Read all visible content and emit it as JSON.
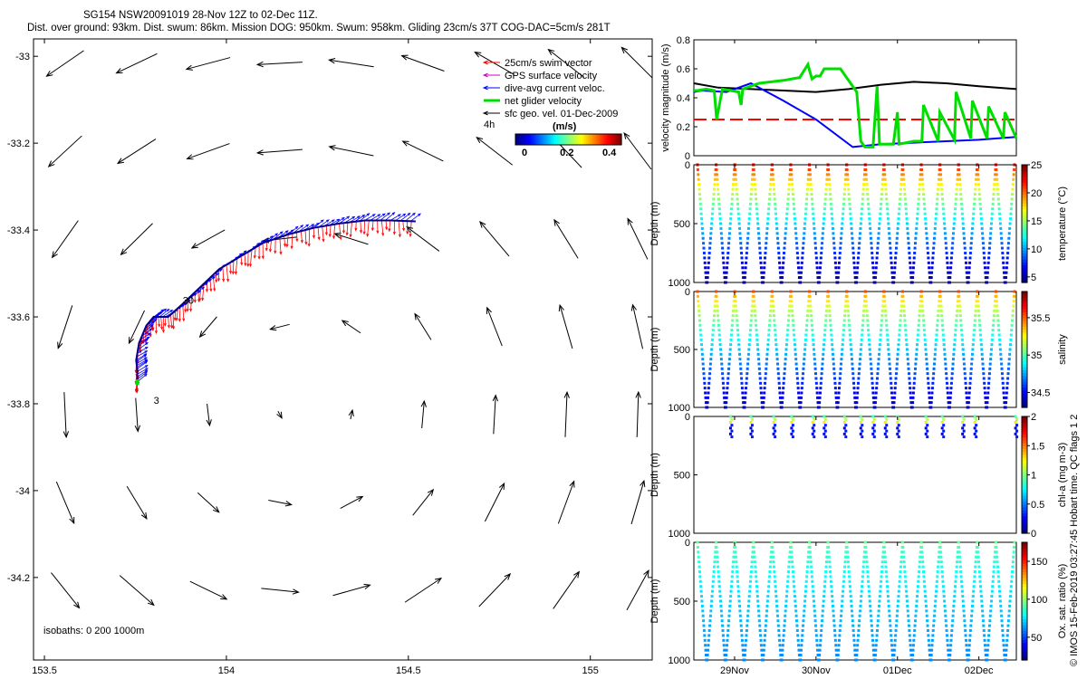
{
  "title": {
    "line1": "SG154 NSW20091019 28-Nov 12Z to 02-Dec 11Z.",
    "line2": "Dist. over ground: 93km. Dist. swum: 86km. Mission DOG: 950km. Swum: 958km. Gliding 23cm/s 37T COG-DAC=5cm/s 281T"
  },
  "map": {
    "xlim": [
      153.47,
      155.17
    ],
    "ylim": [
      -34.39,
      -32.96
    ],
    "xticks": [
      153.5,
      154,
      154.5,
      155
    ],
    "yticks": [
      -33,
      -33.2,
      -33.4,
      -33.6,
      -33.8,
      -34,
      -34.2
    ],
    "legend": [
      {
        "label": "25cm/s swim vector",
        "color": "#ff0000"
      },
      {
        "label": "GPS surface velocity",
        "color": "#cc00cc"
      },
      {
        "label": "dive-avg current veloc.",
        "color": "#0000ff"
      },
      {
        "label": "net glider velocity",
        "color": "#00dd00"
      },
      {
        "label": "sfc geo. vel. 01-Dec-2009",
        "color": "#000000"
      }
    ],
    "colorbar": {
      "label": "(m/s)",
      "ticks": [
        0,
        0.2,
        0.4
      ],
      "range": [
        0,
        0.5
      ]
    },
    "text_4h": "4h",
    "annotations": [
      {
        "text": "30",
        "lon": 153.88,
        "lat": -33.57
      },
      {
        "text": "3",
        "lon": 153.8,
        "lat": -33.8
      }
    ],
    "isobaths_label": "isobaths: 0   200   1000m",
    "eddy_center": {
      "lon": 154.2,
      "lat": -33.8
    }
  },
  "chart_data": [
    {
      "type": "line",
      "title": "",
      "ylabel": "velocity magnitude (m/s)",
      "ylim": [
        0,
        0.8
      ],
      "yticks": [
        0,
        0.2,
        0.4,
        0.6,
        0.8
      ],
      "time_range_days": [
        28.5,
        32.46
      ],
      "series": [
        {
          "name": "surface velocity (black)",
          "color": "#000000",
          "x": [
            28.5,
            28.8,
            29.2,
            29.6,
            30.0,
            30.4,
            30.8,
            31.2,
            31.6,
            32.0,
            32.46
          ],
          "values": [
            0.5,
            0.47,
            0.46,
            0.45,
            0.44,
            0.46,
            0.49,
            0.51,
            0.5,
            0.48,
            0.46
          ]
        },
        {
          "name": "dive-avg current (blue)",
          "color": "#0000ff",
          "x": [
            28.5,
            28.6,
            28.9,
            29.2,
            29.6,
            30.0,
            30.45,
            30.8,
            31.2,
            31.6,
            32.0,
            32.46
          ],
          "values": [
            0.44,
            0.45,
            0.44,
            0.5,
            0.38,
            0.25,
            0.06,
            0.08,
            0.09,
            0.1,
            0.11,
            0.13
          ]
        },
        {
          "name": "25cm/s reference (red)",
          "color": "#ff0000",
          "x": [
            28.5,
            32.46
          ],
          "values": [
            0.25,
            0.25
          ]
        },
        {
          "name": "net glider velocity (green)",
          "color": "#00dd00",
          "x": [
            28.5,
            28.55,
            28.65,
            28.75,
            28.78,
            28.85,
            28.95,
            29.05,
            29.08,
            29.1,
            29.15,
            29.3,
            29.6,
            29.8,
            29.9,
            29.95,
            30.0,
            30.05,
            30.1,
            30.3,
            30.5,
            30.55,
            30.6,
            30.7,
            30.75,
            30.78,
            30.95,
            31.0,
            31.02,
            31.2,
            31.3,
            31.32,
            31.5,
            31.52,
            31.7,
            31.72,
            31.9,
            31.92,
            32.1,
            32.12,
            32.3,
            32.32,
            32.46
          ],
          "values": [
            0.45,
            0.45,
            0.46,
            0.45,
            0.25,
            0.46,
            0.45,
            0.44,
            0.35,
            0.46,
            0.47,
            0.5,
            0.52,
            0.54,
            0.63,
            0.53,
            0.55,
            0.55,
            0.6,
            0.6,
            0.44,
            0.1,
            0.06,
            0.06,
            0.48,
            0.08,
            0.08,
            0.3,
            0.08,
            0.1,
            0.1,
            0.35,
            0.1,
            0.3,
            0.11,
            0.44,
            0.12,
            0.38,
            0.12,
            0.34,
            0.12,
            0.3,
            0.12
          ]
        }
      ]
    },
    {
      "type": "scatter",
      "ylabel": "Depth (m)",
      "ylim": [
        1000,
        0
      ],
      "colorbar_label": "temperature (°C)",
      "colorbar_ticks": [
        5,
        10,
        15,
        20,
        25
      ],
      "colorbar_range": [
        4,
        25
      ],
      "profile": {
        "surface_value": 24,
        "bottom_value": 4.5
      },
      "dives": 17,
      "max_depth": 1000
    },
    {
      "type": "scatter",
      "ylabel": "Depth (m)",
      "ylim": [
        1000,
        0
      ],
      "colorbar_label": "salinity",
      "colorbar_ticks": [
        34.5,
        35,
        35.5
      ],
      "colorbar_range": [
        34.3,
        35.85
      ],
      "profile": {
        "surface_value": 35.55,
        "bottom_value": 34.4
      },
      "dives": 17,
      "max_depth": 1000
    },
    {
      "type": "scatter",
      "ylabel": "Depth (m)",
      "ylim": [
        1000,
        0
      ],
      "colorbar_label": "chl-a (mg m-3)",
      "colorbar_ticks": [
        0,
        0.5,
        1,
        1.5,
        2
      ],
      "colorbar_range": [
        0,
        2
      ],
      "dive_times": [
        28.95,
        29.2,
        29.48,
        29.7,
        29.96,
        30.1,
        30.35,
        30.55,
        30.7,
        30.85,
        31.0,
        31.35,
        31.55,
        31.8,
        31.95,
        32.45
      ],
      "max_depth": 200
    },
    {
      "type": "scatter",
      "ylabel": "Depth (m)",
      "ylim": [
        1000,
        0
      ],
      "colorbar_label": "Ox. sat. ratio (%)",
      "colorbar_ticks": [
        50,
        100,
        150
      ],
      "colorbar_range": [
        20,
        175
      ],
      "profile": {
        "surface_value": 95,
        "bottom_value": 60
      },
      "dives": 17,
      "max_depth": 1000
    }
  ],
  "time_axis": {
    "ticks": [
      {
        "label": "29Nov",
        "day": 29
      },
      {
        "label": "30Nov",
        "day": 30
      },
      {
        "label": "01Dec",
        "day": 31
      },
      {
        "label": "02Dec",
        "day": 32
      }
    ]
  },
  "side_note": "© IMOS 15-Feb-2019 03:27:45 Hobart time. QC flags 1  2"
}
